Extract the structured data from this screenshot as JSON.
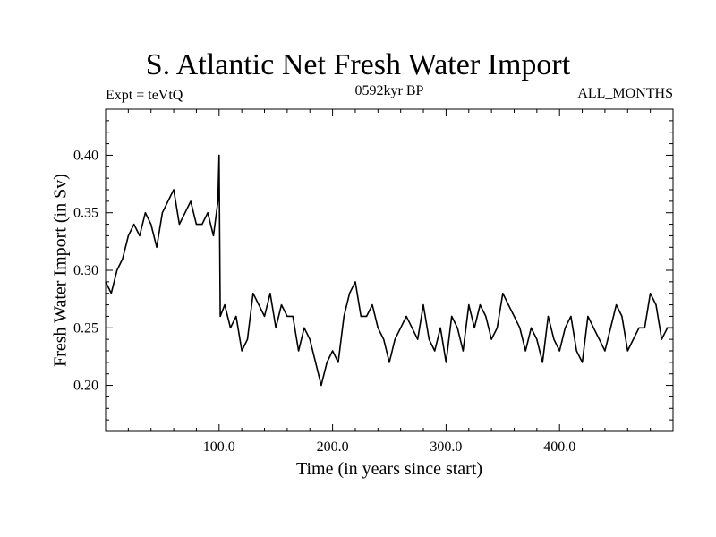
{
  "header": {
    "title": "S. Atlantic Net Fresh Water Import",
    "experiment": "Expt = teVtQ",
    "period": "0592kyr BP",
    "months": "ALL_MONTHS"
  },
  "chart_data": {
    "type": "line",
    "title": "S. Atlantic Net Fresh Water Import",
    "xlabel": "Time (in years since start)",
    "ylabel": "Fresh Water Import (in Sv)",
    "xlim": [
      0,
      500
    ],
    "ylim": [
      0.16,
      0.44
    ],
    "xticks": [
      100,
      200,
      300,
      400
    ],
    "xtick_labels": [
      "100.0",
      "200.0",
      "300.0",
      "400.0"
    ],
    "yticks": [
      0.2,
      0.25,
      0.3,
      0.35,
      0.4
    ],
    "ytick_labels": [
      "0.20",
      "0.25",
      "0.30",
      "0.35",
      "0.40"
    ],
    "grid": false,
    "series": [
      {
        "name": "",
        "color": "#000000",
        "x": [
          0,
          5,
          10,
          15,
          20,
          25,
          30,
          35,
          40,
          45,
          50,
          55,
          60,
          65,
          70,
          75,
          80,
          85,
          90,
          95,
          99,
          100,
          101,
          105,
          110,
          115,
          120,
          125,
          130,
          135,
          140,
          145,
          150,
          155,
          160,
          165,
          170,
          175,
          180,
          185,
          190,
          195,
          200,
          205,
          210,
          215,
          220,
          225,
          230,
          235,
          240,
          245,
          250,
          255,
          260,
          265,
          270,
          275,
          280,
          285,
          290,
          295,
          300,
          305,
          310,
          315,
          320,
          325,
          330,
          335,
          340,
          345,
          350,
          355,
          360,
          365,
          370,
          375,
          380,
          385,
          390,
          395,
          400,
          405,
          410,
          415,
          420,
          425,
          430,
          435,
          440,
          445,
          450,
          455,
          460,
          465,
          470,
          475,
          480,
          485,
          490,
          495,
          500
        ],
        "y": [
          0.29,
          0.28,
          0.3,
          0.31,
          0.33,
          0.34,
          0.33,
          0.35,
          0.34,
          0.32,
          0.35,
          0.36,
          0.37,
          0.34,
          0.35,
          0.36,
          0.34,
          0.34,
          0.35,
          0.33,
          0.36,
          0.4,
          0.26,
          0.27,
          0.25,
          0.26,
          0.23,
          0.24,
          0.28,
          0.27,
          0.26,
          0.28,
          0.25,
          0.27,
          0.26,
          0.26,
          0.23,
          0.25,
          0.24,
          0.22,
          0.2,
          0.22,
          0.23,
          0.22,
          0.26,
          0.28,
          0.29,
          0.26,
          0.26,
          0.27,
          0.25,
          0.24,
          0.22,
          0.24,
          0.25,
          0.26,
          0.25,
          0.24,
          0.27,
          0.24,
          0.23,
          0.25,
          0.22,
          0.26,
          0.25,
          0.23,
          0.27,
          0.25,
          0.27,
          0.26,
          0.24,
          0.25,
          0.28,
          0.27,
          0.26,
          0.25,
          0.23,
          0.25,
          0.24,
          0.22,
          0.26,
          0.24,
          0.23,
          0.25,
          0.26,
          0.23,
          0.22,
          0.26,
          0.25,
          0.24,
          0.23,
          0.25,
          0.27,
          0.26,
          0.23,
          0.24,
          0.25,
          0.25,
          0.28,
          0.27,
          0.24,
          0.25,
          0.25
        ]
      }
    ]
  }
}
